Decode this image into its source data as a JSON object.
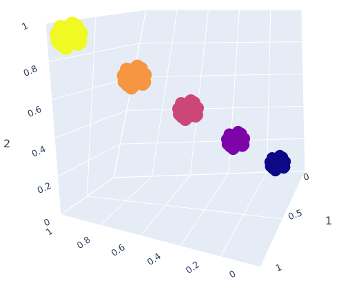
{
  "chart_data": {
    "type": "scatter",
    "dimensions": "3d",
    "title": "",
    "axes": {
      "x": {
        "title": "",
        "ticks": [
          "1",
          "0.8",
          "0.6",
          "0.4",
          "0.2",
          "0"
        ],
        "range": [
          1,
          0
        ]
      },
      "y": {
        "title": "1",
        "ticks": [
          "0",
          "0.5",
          "1"
        ],
        "range": [
          0,
          1
        ]
      },
      "z": {
        "title": "2",
        "ticks": [
          "0",
          "0.2",
          "0.4",
          "0.6",
          "0.8",
          "1"
        ],
        "range": [
          0,
          1
        ]
      }
    },
    "clusters": [
      {
        "x": 0.0,
        "y": 0.0,
        "z": 0.0,
        "color": "#0d0887"
      },
      {
        "x": 0.25,
        "y": 0.0,
        "z": 0.25,
        "color": "#7e03a8"
      },
      {
        "x": 0.5,
        "y": 0.0,
        "z": 0.5,
        "color": "#cc4778"
      },
      {
        "x": 0.75,
        "y": 0.0,
        "z": 0.75,
        "color": "#f89540"
      },
      {
        "x": 1.0,
        "y": 0.0,
        "z": 1.0,
        "color": "#f0f921"
      }
    ],
    "background": "#e5ecf6",
    "grid": true,
    "legend": "none"
  }
}
